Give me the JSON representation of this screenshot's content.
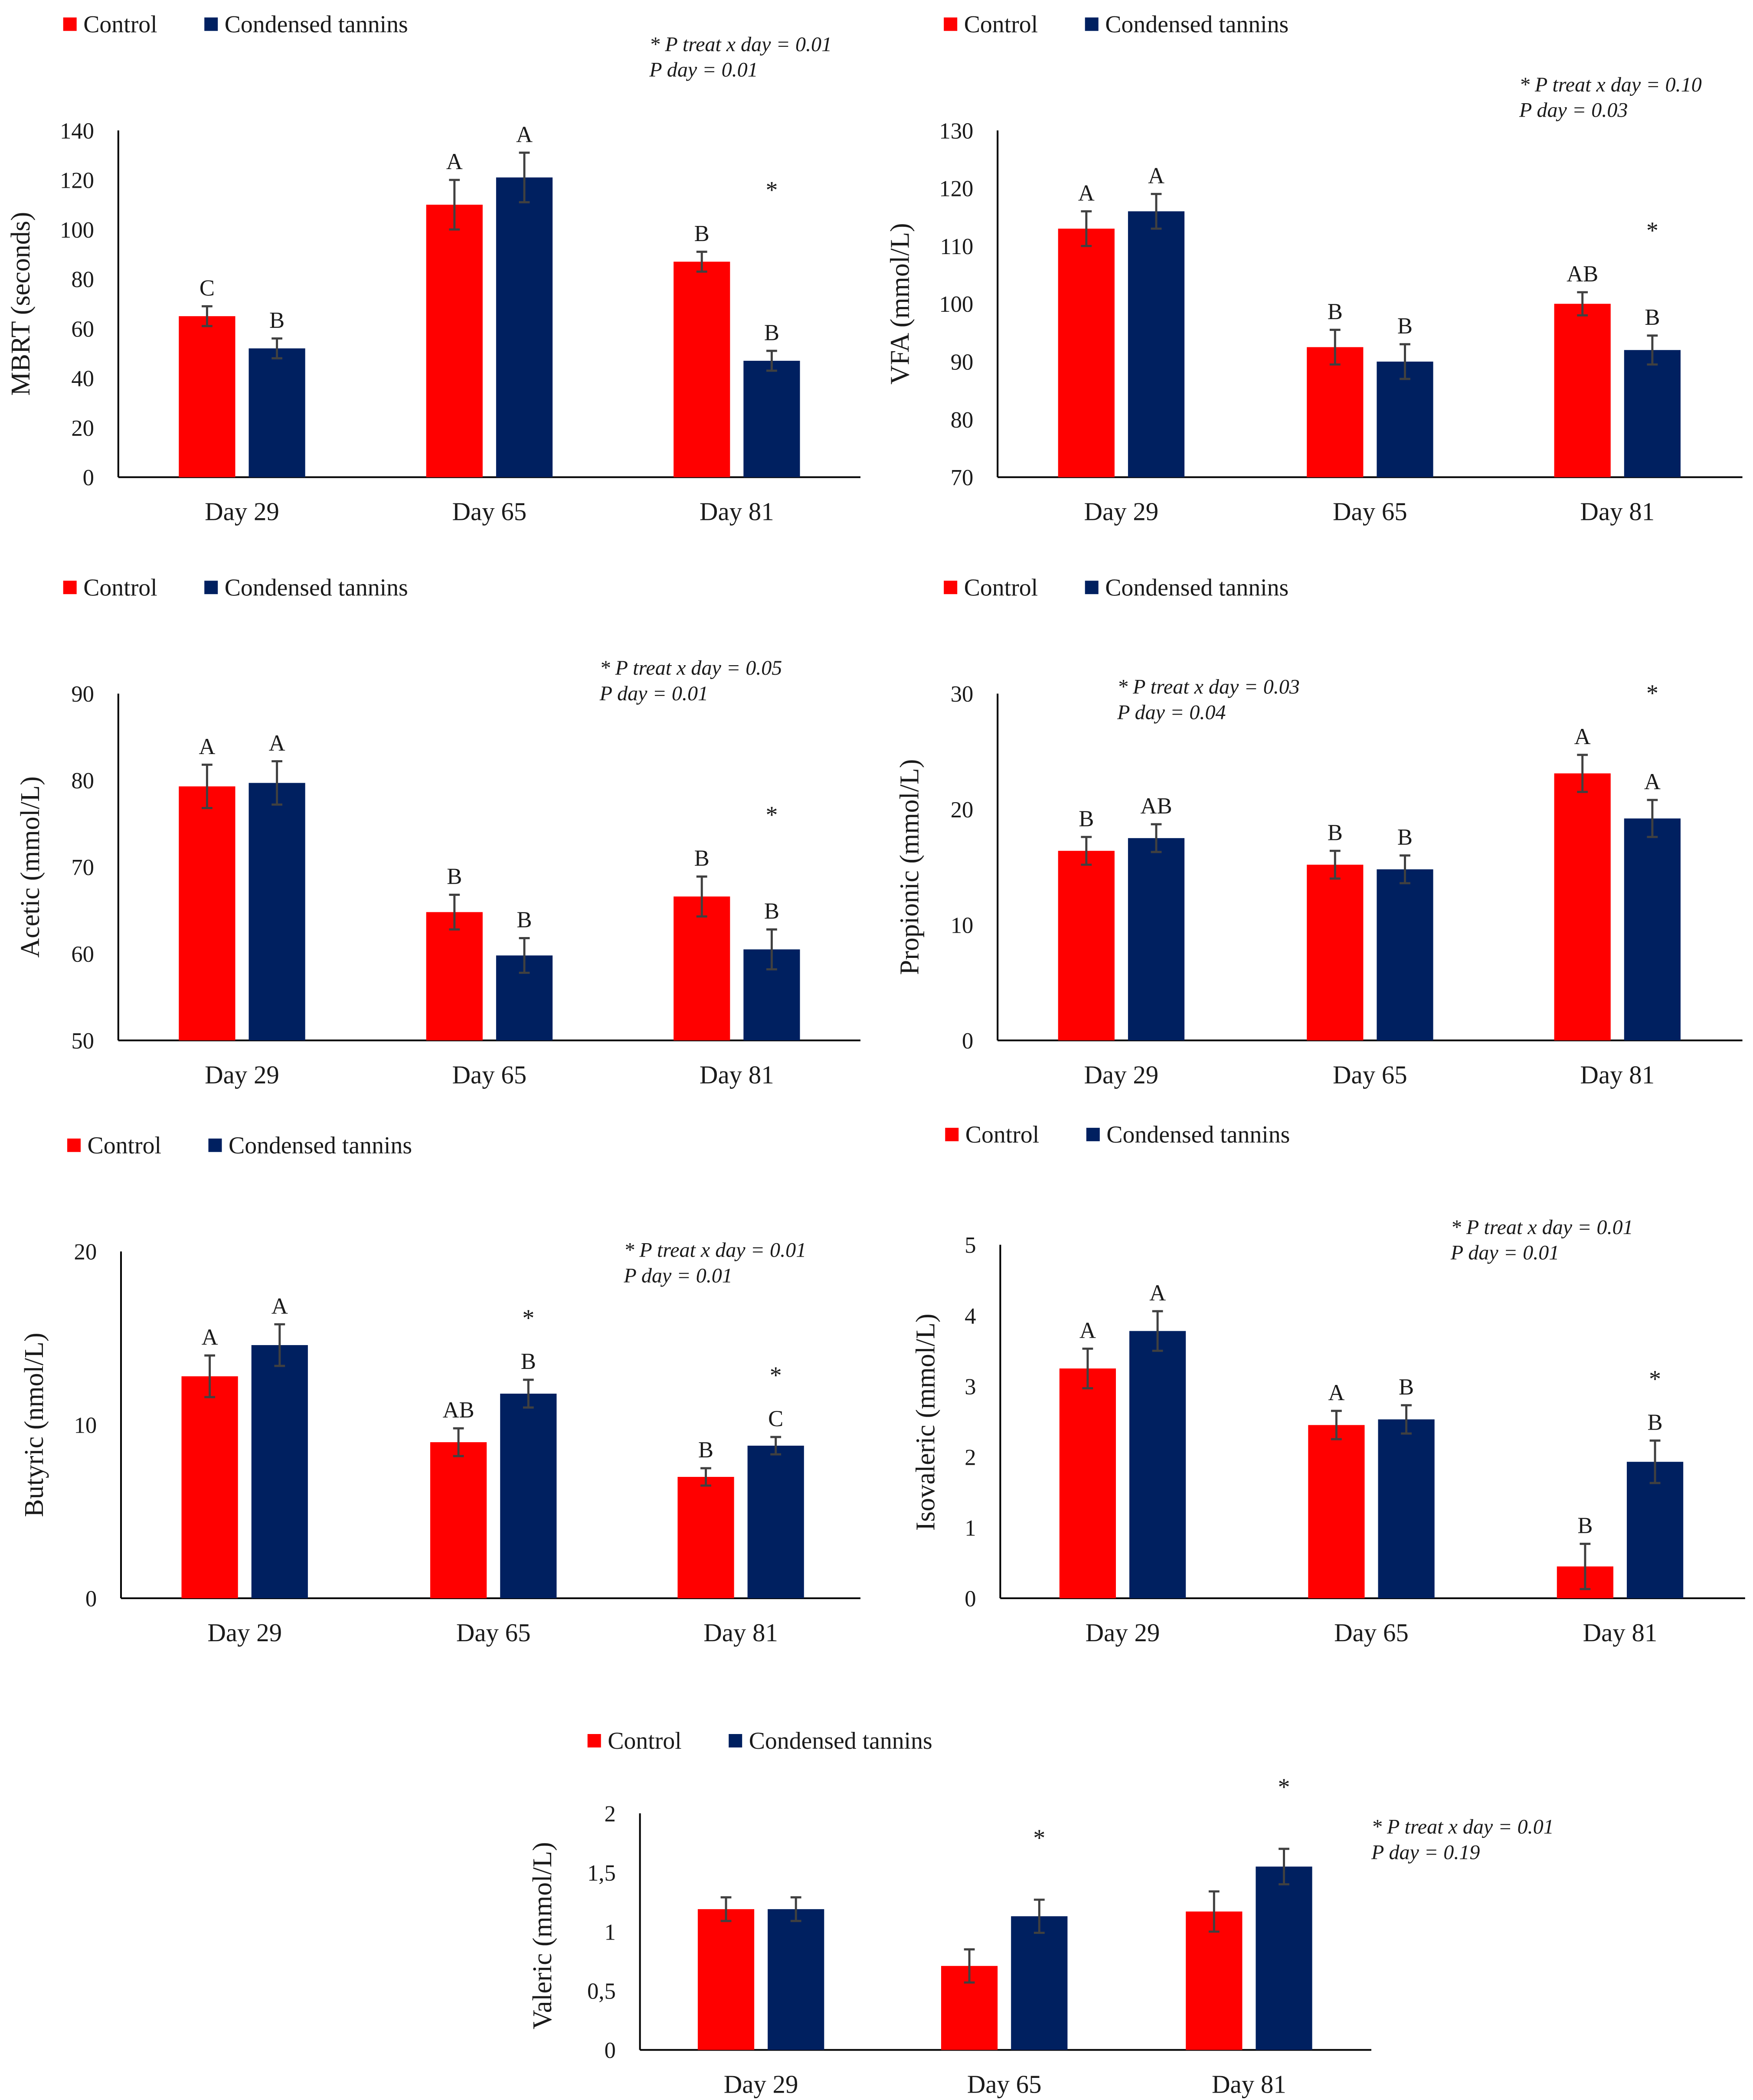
{
  "colors": {
    "control": "#ff0000",
    "treated": "#002060",
    "axis": "#000000",
    "errorbar": "#404040"
  },
  "chart_data": [
    {
      "id": "mbrt",
      "type": "bar",
      "legend": [
        "Control",
        "Condensed tannins"
      ],
      "categories": [
        "Day 29",
        "Day 65",
        "Day 81"
      ],
      "ylabel": "MBRT (seconds)",
      "ylim": [
        0,
        140
      ],
      "yticks": [
        "0",
        "20",
        "40",
        "60",
        "80",
        "100",
        "120",
        "140"
      ],
      "series": [
        {
          "name": "Control",
          "values": [
            65,
            110,
            87
          ],
          "errors": [
            4,
            10,
            4
          ],
          "letters": [
            "C",
            "A",
            "B"
          ]
        },
        {
          "name": "Condensed tannins",
          "values": [
            52,
            121,
            47
          ],
          "errors": [
            4,
            10,
            4
          ],
          "letters": [
            "B",
            "A",
            "B"
          ]
        }
      ],
      "stars": [
        "",
        "",
        "*"
      ],
      "annotations": [
        "* P treat x day = 0.01",
        "P day = 0.01"
      ]
    },
    {
      "id": "vfa",
      "type": "bar",
      "legend": [
        "Control",
        "Condensed tannins"
      ],
      "categories": [
        "Day 29",
        "Day 65",
        "Day 81"
      ],
      "ylabel": "VFA (mmol/L)",
      "ylim": [
        70,
        130
      ],
      "yticks": [
        "70",
        "80",
        "90",
        "100",
        "110",
        "120",
        "130"
      ],
      "series": [
        {
          "name": "Control",
          "values": [
            113,
            92.5,
            100
          ],
          "errors": [
            3,
            3,
            2
          ],
          "letters": [
            "A",
            "B",
            "AB"
          ]
        },
        {
          "name": "Condensed tannins",
          "values": [
            116,
            90,
            92
          ],
          "errors": [
            3,
            3,
            2.5
          ],
          "letters": [
            "A",
            "B",
            "B"
          ]
        }
      ],
      "stars": [
        "",
        "",
        "*"
      ],
      "annotations": [
        "* P treat x day = 0.10",
        "P day = 0.03"
      ]
    },
    {
      "id": "acetic",
      "type": "bar",
      "legend": [
        "Control",
        "Condensed tannins"
      ],
      "categories": [
        "Day 29",
        "Day 65",
        "Day 81"
      ],
      "ylabel": "Acetic (mmol/L)",
      "ylim": [
        50,
        90
      ],
      "yticks": [
        "50",
        "60",
        "70",
        "80",
        "90"
      ],
      "series": [
        {
          "name": "Control",
          "values": [
            79.3,
            64.8,
            66.6
          ],
          "errors": [
            2.5,
            2,
            2.3
          ],
          "letters": [
            "A",
            "B",
            "B"
          ]
        },
        {
          "name": "Condensed tannins",
          "values": [
            79.7,
            59.8,
            60.5
          ],
          "errors": [
            2.5,
            2,
            2.3
          ],
          "letters": [
            "A",
            "B",
            "B"
          ]
        }
      ],
      "stars": [
        "",
        "",
        "*"
      ],
      "annotations": [
        "* P treat x day = 0.05",
        "P day = 0.01"
      ]
    },
    {
      "id": "propionic",
      "type": "bar",
      "legend": [
        "Control",
        "Condensed tannins"
      ],
      "categories": [
        "Day 29",
        "Day 65",
        "Day 81"
      ],
      "ylabel": "Propionic (mmol/L)",
      "ylim": [
        0,
        30
      ],
      "yticks": [
        "0",
        "10",
        "20",
        "30"
      ],
      "series": [
        {
          "name": "Control",
          "values": [
            16.4,
            15.2,
            23.1
          ],
          "errors": [
            1.2,
            1.2,
            1.6
          ],
          "letters": [
            "B",
            "B",
            "A"
          ]
        },
        {
          "name": "Condensed tannins",
          "values": [
            17.5,
            14.8,
            19.2
          ],
          "errors": [
            1.2,
            1.2,
            1.6
          ],
          "letters": [
            "AB",
            "B",
            "A"
          ]
        }
      ],
      "stars": [
        "",
        "",
        "*"
      ],
      "annotations": [
        "* P treat x day = 0.03",
        "P day = 0.04"
      ]
    },
    {
      "id": "butyric",
      "type": "bar",
      "legend": [
        "Control",
        "Condensed tannins"
      ],
      "categories": [
        "Day 29",
        "Day 65",
        "Day 81"
      ],
      "ylabel": "Butyric (nmol/L)",
      "ylim": [
        0,
        20
      ],
      "yticks": [
        "0",
        "10",
        "20"
      ],
      "series": [
        {
          "name": "Control",
          "values": [
            12.8,
            9,
            7
          ],
          "errors": [
            1.2,
            0.8,
            0.5
          ],
          "letters": [
            "A",
            "AB",
            "B"
          ]
        },
        {
          "name": "Condensed tannins",
          "values": [
            14.6,
            11.8,
            8.8
          ],
          "errors": [
            1.2,
            0.8,
            0.5
          ],
          "letters": [
            "A",
            "B",
            "C"
          ]
        }
      ],
      "stars": [
        "",
        "*",
        "*"
      ],
      "annotations": [
        "* P treat x day  = 0.01",
        "P day = 0.01"
      ]
    },
    {
      "id": "isovaleric",
      "type": "bar",
      "legend": [
        "Control",
        "Condensed tannins"
      ],
      "categories": [
        "Day 29",
        "Day 65",
        "Day 81"
      ],
      "ylabel": "Isovaleric (mmol/L)",
      "ylim": [
        0,
        5
      ],
      "yticks": [
        "0",
        "1",
        "2",
        "3",
        "4",
        "5"
      ],
      "series": [
        {
          "name": "Control",
          "values": [
            3.25,
            2.45,
            0.45
          ],
          "errors": [
            0.28,
            0.2,
            0.32
          ],
          "letters": [
            "A",
            "A",
            "B"
          ]
        },
        {
          "name": "Condensed tannins",
          "values": [
            3.78,
            2.53,
            1.93
          ],
          "errors": [
            0.28,
            0.2,
            0.3
          ],
          "letters": [
            "A",
            "B",
            "B"
          ]
        }
      ],
      "stars": [
        "",
        "",
        "*"
      ],
      "annotations": [
        "* P treat x day = 0.01",
        "P day = 0.01"
      ]
    },
    {
      "id": "valeric",
      "type": "bar",
      "legend": [
        "Control",
        "Condensed tannins"
      ],
      "categories": [
        "Day 29",
        "Day 65",
        "Day 81"
      ],
      "ylabel": "Valeric (mmol/L)",
      "ylim": [
        0,
        2
      ],
      "yticks": [
        "0",
        "0,5",
        "1",
        "1,5",
        "2"
      ],
      "series": [
        {
          "name": "Control",
          "values": [
            1.19,
            0.71,
            1.17
          ],
          "errors": [
            0.1,
            0.14,
            0.17
          ],
          "letters": [
            "",
            "",
            ""
          ]
        },
        {
          "name": "Condensed tannins",
          "values": [
            1.19,
            1.13,
            1.55
          ],
          "errors": [
            0.1,
            0.14,
            0.15
          ],
          "letters": [
            "",
            "",
            ""
          ]
        }
      ],
      "stars": [
        "",
        "*",
        "*"
      ],
      "annotations": [
        "* P treat x day = 0.01",
        "P day = 0.19"
      ]
    }
  ]
}
